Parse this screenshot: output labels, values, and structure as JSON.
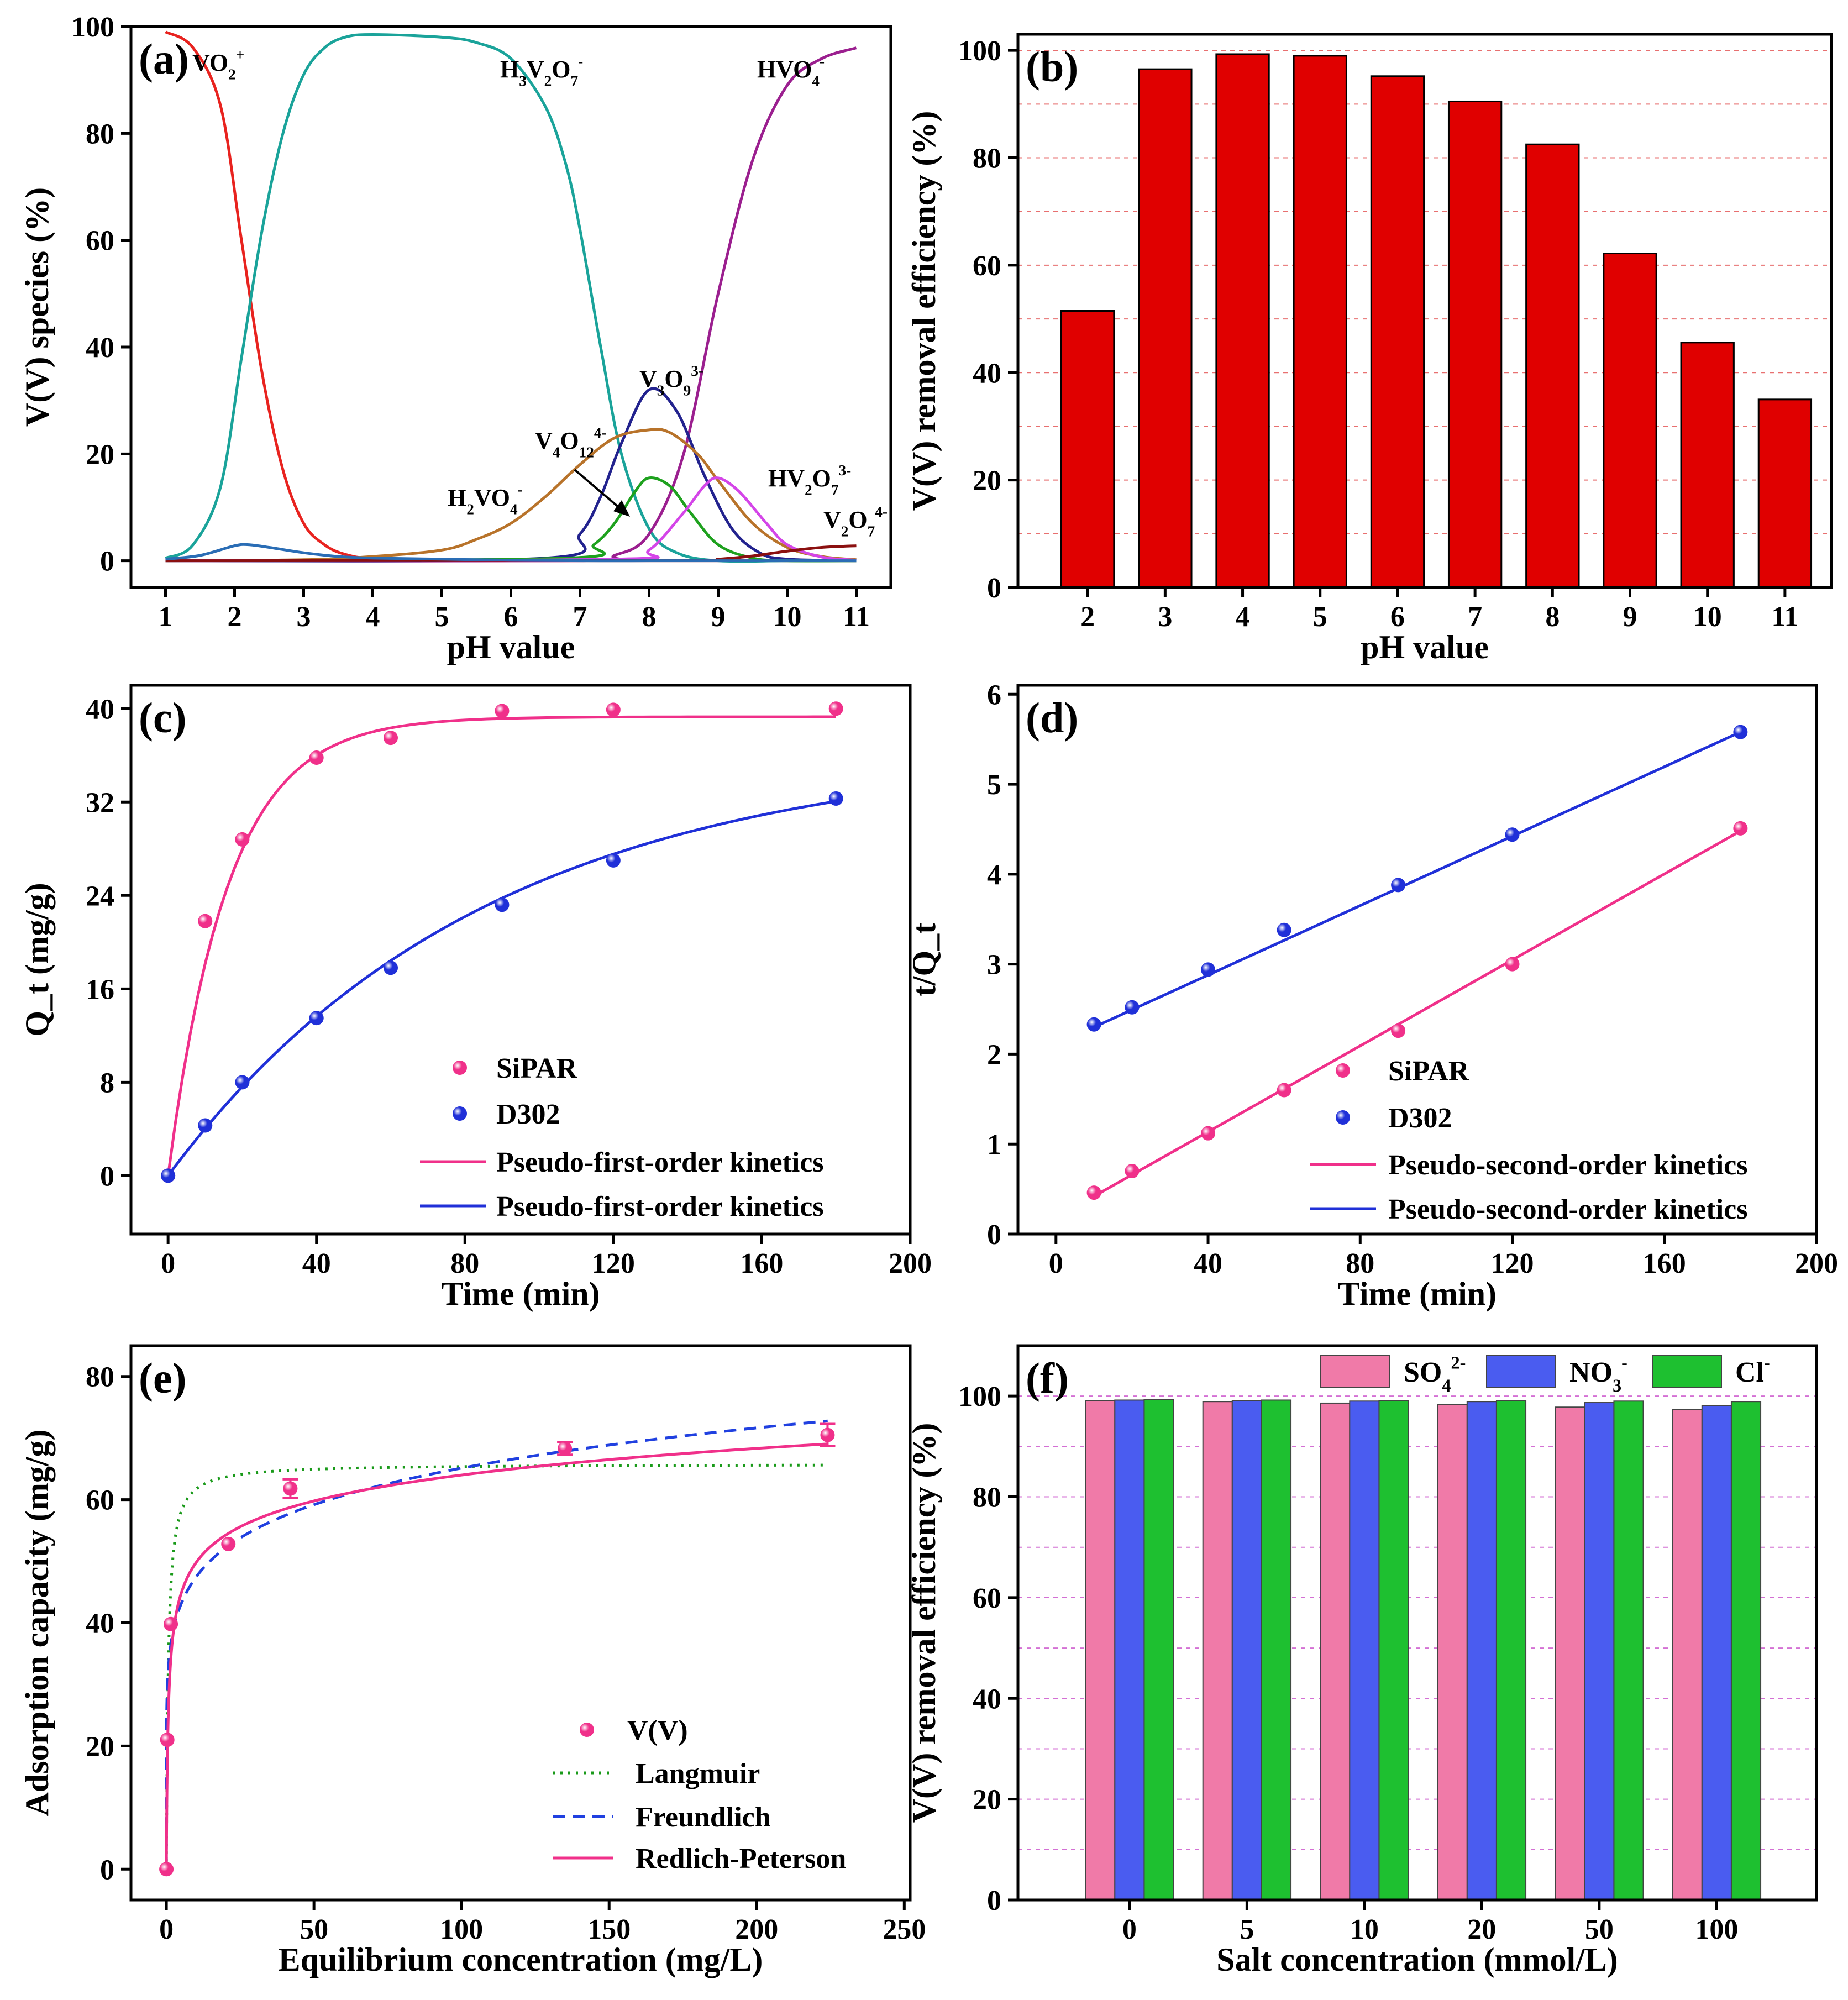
{
  "chart_data": [
    {
      "id": "a",
      "type": "line",
      "panel_label": "(a)",
      "xlabel": "pH value",
      "ylabel": "V(V) species (%)",
      "xlim": [
        0.5,
        11.5
      ],
      "ylim": [
        -5,
        100
      ],
      "xticks": [
        1,
        2,
        3,
        4,
        5,
        6,
        7,
        8,
        9,
        10,
        11
      ],
      "yticks": [
        0,
        20,
        40,
        60,
        80,
        100
      ],
      "species_labels": [
        {
          "text": "VO",
          "sup": "+",
          "sub": "2"
        },
        {
          "text": "H",
          "sub": "3",
          "mid": "V",
          "sub2": "2",
          "end": "O",
          "sub3": "7",
          "sup": "-"
        },
        {
          "text": "HVO",
          "sub": "4",
          "sup": "-"
        },
        {
          "text": "V",
          "sub": "3",
          "mid": "O",
          "sub2": "9",
          "sup": "3-"
        },
        {
          "text": "V",
          "sub": "4",
          "mid": "O",
          "sub2": "12",
          "sup": "4-"
        },
        {
          "text": "H",
          "sub": "2",
          "mid": "VO",
          "sub2": "4",
          "sup": "-"
        },
        {
          "text": "HV",
          "sub": "2",
          "mid": "O",
          "sub2": "7",
          "sup": "3-"
        },
        {
          "text": "V",
          "sub": "2",
          "mid": "O",
          "sub2": "7",
          "sup": "4-"
        }
      ],
      "series": [
        {
          "color": "#e8231f",
          "x": [
            1,
            1.4,
            1.8,
            2.1,
            2.4,
            2.7,
            3.0,
            3.3,
            3.6,
            4,
            5,
            6,
            7,
            8,
            9,
            10,
            11
          ],
          "y": [
            99,
            96,
            85,
            60,
            35,
            17,
            7,
            3,
            1.2,
            0.4,
            0,
            0,
            0,
            0,
            0,
            0,
            0
          ]
        },
        {
          "color": "#1aa39a",
          "x": [
            1,
            1.4,
            1.8,
            2.1,
            2.4,
            2.7,
            3.0,
            3.3,
            3.6,
            4,
            5,
            5.5,
            6,
            6.5,
            6.8,
            7.0,
            7.3,
            7.6,
            8.0,
            8.4,
            9,
            10,
            11
          ],
          "y": [
            0.5,
            3,
            14,
            38,
            62,
            80,
            91,
            96,
            98,
            98.5,
            98,
            97,
            94,
            85,
            74,
            62,
            40,
            20,
            6,
            1.5,
            0,
            0,
            0
          ]
        },
        {
          "color": "#9b1f8f",
          "x": [
            1,
            7,
            7.5,
            8,
            8.5,
            9,
            9.5,
            10,
            10.5,
            11
          ],
          "y": [
            0,
            0,
            1,
            5,
            20,
            50,
            75,
            89,
            94,
            96
          ]
        },
        {
          "color": "#22228e",
          "x": [
            1,
            6.5,
            7,
            7.3,
            7.6,
            8.0,
            8.4,
            8.8,
            9.2,
            9.6,
            10,
            11
          ],
          "y": [
            0,
            0.5,
            5,
            12,
            22,
            32,
            28,
            16,
            6,
            1.5,
            0.3,
            0
          ]
        },
        {
          "color": "#b8732a",
          "x": [
            1,
            3,
            4,
            5,
            5.5,
            6,
            6.5,
            7,
            7.5,
            8,
            8.3,
            8.7,
            9,
            9.5,
            10,
            10.5,
            11
          ],
          "y": [
            0,
            0.2,
            0.8,
            2,
            4,
            7,
            12,
            18,
            23,
            24.5,
            24,
            20,
            15,
            7,
            2.5,
            0.8,
            0.2
          ]
        },
        {
          "color": "#1ea11e",
          "x": [
            1,
            6.8,
            7.2,
            7.5,
            7.8,
            8.0,
            8.3,
            8.6,
            9,
            9.5,
            10,
            11
          ],
          "y": [
            0,
            0.5,
            3,
            7,
            13,
            15.5,
            14,
            9,
            3,
            0.5,
            0,
            0
          ]
        },
        {
          "color": "#d445e8",
          "x": [
            1,
            7.5,
            8,
            8.5,
            8.8,
            9.0,
            9.3,
            9.7,
            10,
            10.5,
            11
          ],
          "y": [
            0,
            0.3,
            2,
            9,
            14,
            15.5,
            13,
            7,
            3,
            0.7,
            0.1
          ]
        },
        {
          "color": "#8b1010",
          "x": [
            1,
            8.5,
            9,
            9.5,
            10,
            10.5,
            11
          ],
          "y": [
            0,
            0.1,
            0.3,
            0.9,
            1.8,
            2.5,
            2.8
          ]
        },
        {
          "color": "#2a6db5",
          "x": [
            1,
            1.5,
            2,
            2.2,
            2.5,
            3,
            3.5,
            4,
            5,
            6,
            7,
            8,
            9,
            10,
            11
          ],
          "y": [
            0.3,
            1,
            2.8,
            3,
            2.5,
            1.5,
            0.8,
            0.5,
            0.3,
            0.1,
            0,
            0,
            0,
            0,
            0
          ]
        }
      ]
    },
    {
      "id": "b",
      "type": "bar",
      "panel_label": "(b)",
      "xlabel": "pH value",
      "ylabel": "V(V) removal efficiency (%)",
      "categories": [
        "2",
        "3",
        "4",
        "5",
        "6",
        "7",
        "8",
        "9",
        "10",
        "11"
      ],
      "values": [
        51.5,
        96.5,
        99.3,
        99,
        95.2,
        90.5,
        82.5,
        62.2,
        45.6,
        35
      ],
      "ylim": [
        0,
        103
      ],
      "yticks": [
        0,
        20,
        40,
        60,
        80,
        100
      ],
      "color": "#e00000"
    },
    {
      "id": "c",
      "type": "scatter",
      "panel_label": "(c)",
      "xlabel": "Time (min)",
      "ylabel": "Q_t (mg/g)",
      "xlim": [
        -10,
        200
      ],
      "ylim": [
        -5,
        42
      ],
      "xticks": [
        0,
        40,
        80,
        120,
        160,
        200
      ],
      "yticks": [
        0,
        8,
        16,
        24,
        32,
        40
      ],
      "series": [
        {
          "name": "SiPAR",
          "color": "#f0308a",
          "x": [
            0,
            10,
            20,
            40,
            60,
            90,
            120,
            180
          ],
          "y": [
            0,
            21.8,
            28.8,
            35.8,
            37.5,
            39.8,
            39.9,
            40
          ]
        },
        {
          "name": "D302",
          "color": "#2030d8",
          "x": [
            0,
            10,
            20,
            40,
            60,
            90,
            120,
            180
          ],
          "y": [
            0,
            4.3,
            8,
            13.5,
            17.8,
            23.2,
            27,
            32.3
          ]
        }
      ],
      "fits": [
        {
          "name": "Pseudo-first-order kinetics",
          "color": "#f0308a",
          "qe": 39.3,
          "k": 0.062
        },
        {
          "name": "Pseudo-first-order kinetics",
          "color": "#2030d8",
          "qe": 36.5,
          "k": 0.0117
        }
      ]
    },
    {
      "id": "d",
      "type": "scatter",
      "panel_label": "(d)",
      "xlabel": "Time (min)",
      "ylabel": "t/Q_t",
      "xlim": [
        -10,
        200
      ],
      "ylim": [
        0,
        6.1
      ],
      "xticks": [
        0,
        40,
        80,
        120,
        160,
        200
      ],
      "yticks": [
        0,
        1,
        2,
        3,
        4,
        5,
        6
      ],
      "series": [
        {
          "name": "SiPAR",
          "color": "#f0308a",
          "x": [
            10,
            20,
            40,
            60,
            90,
            120,
            180
          ],
          "y": [
            0.46,
            0.7,
            1.12,
            1.6,
            2.26,
            3.0,
            4.51
          ]
        },
        {
          "name": "D302",
          "color": "#2030d8",
          "x": [
            10,
            20,
            40,
            60,
            90,
            120,
            180
          ],
          "y": [
            2.33,
            2.52,
            2.94,
            3.38,
            3.88,
            4.44,
            5.58
          ]
        }
      ],
      "fits": [
        {
          "name": "Pseudo-second-order kinetics",
          "color": "#f0308a",
          "x": [
            10,
            180
          ],
          "y": [
            0.42,
            4.48
          ]
        },
        {
          "name": "Pseudo-second-order kinetics",
          "color": "#2030d8",
          "x": [
            10,
            180
          ],
          "y": [
            2.3,
            5.58
          ]
        }
      ]
    },
    {
      "id": "e",
      "type": "scatter",
      "panel_label": "(e)",
      "xlabel": "Equilibrium concentration (mg/L)",
      "ylabel": "Adsorption capacity (mg/g)",
      "xlim": [
        -12,
        252
      ],
      "ylim": [
        -5,
        85
      ],
      "xticks": [
        0,
        50,
        100,
        150,
        200,
        250
      ],
      "yticks": [
        0,
        20,
        40,
        60,
        80
      ],
      "series": [
        {
          "name": "V(V)",
          "color": "#f0308a",
          "x": [
            0,
            0.3,
            1.5,
            21,
            42,
            135,
            224
          ],
          "y": [
            0,
            21,
            39.8,
            52.8,
            61.8,
            68.3,
            70.5
          ],
          "err": [
            0,
            0,
            0,
            0,
            1.5,
            1,
            1.8
          ]
        }
      ],
      "fits": [
        {
          "name": "Langmuir",
          "color": "#1a9a1a",
          "style": "dotted",
          "qm": 65.8,
          "KL": 1.5
        },
        {
          "name": "Freundlich",
          "color": "#2040e0",
          "style": "dashed",
          "KF": 34.5,
          "n": 7.25
        },
        {
          "name": "Redlich-Peterson",
          "color": "#f0308a",
          "style": "solid",
          "A": 100,
          "B": 2.35,
          "g": 0.91
        }
      ]
    },
    {
      "id": "f",
      "type": "bar",
      "panel_label": "(f)",
      "xlabel": "Salt concentration (mmol/L)",
      "ylabel": "V(V) removal efficiency (%)",
      "categories": [
        "0",
        "5",
        "10",
        "20",
        "50",
        "100"
      ],
      "ylim": [
        0,
        110
      ],
      "yticks": [
        0,
        20,
        40,
        60,
        80,
        100
      ],
      "series": [
        {
          "name": "SO",
          "sub": "4",
          "sup": "2-",
          "color": "#f07aa8",
          "values": [
            99.1,
            98.9,
            98.6,
            98.3,
            97.8,
            97.3
          ]
        },
        {
          "name": "NO",
          "sub": "3",
          "sup": "-",
          "color": "#4a5cf0",
          "values": [
            99.2,
            99.1,
            99.0,
            98.9,
            98.7,
            98.1
          ]
        },
        {
          "name": "Cl",
          "sub": "",
          "sup": "-",
          "color": "#1ec030",
          "values": [
            99.3,
            99.2,
            99.1,
            99.1,
            99.0,
            98.9
          ]
        }
      ]
    }
  ]
}
